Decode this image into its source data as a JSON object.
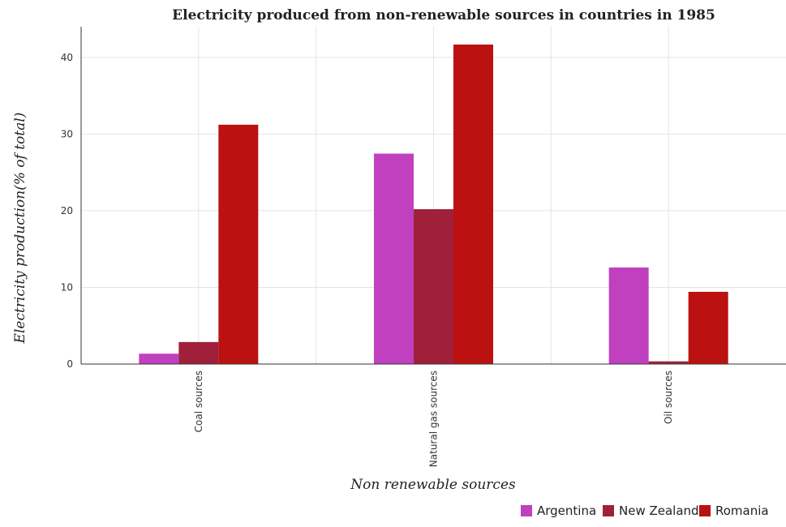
{
  "chart_data": {
    "type": "bar",
    "title": "Electricity produced from non-renewable sources in countries in 1985",
    "xlabel": "Non renewable sources",
    "ylabel": "Electricity production(% of total)",
    "categories": [
      "Coal sources",
      "Natural gas sources",
      "Oil sources"
    ],
    "series": [
      {
        "name": "Argentina",
        "color": "#c040c0",
        "values": [
          1.35,
          27.45,
          12.6
        ]
      },
      {
        "name": "New Zealand",
        "color": "#a0203c",
        "values": [
          2.87,
          20.2,
          0.35
        ]
      },
      {
        "name": "Romania",
        "color": "#bb1111",
        "values": [
          31.22,
          41.68,
          9.42
        ]
      }
    ],
    "ylim": [
      0,
      44
    ],
    "yticks": [
      0,
      10,
      20,
      30,
      40
    ],
    "grid": true,
    "legend_position": "bottom-right"
  }
}
